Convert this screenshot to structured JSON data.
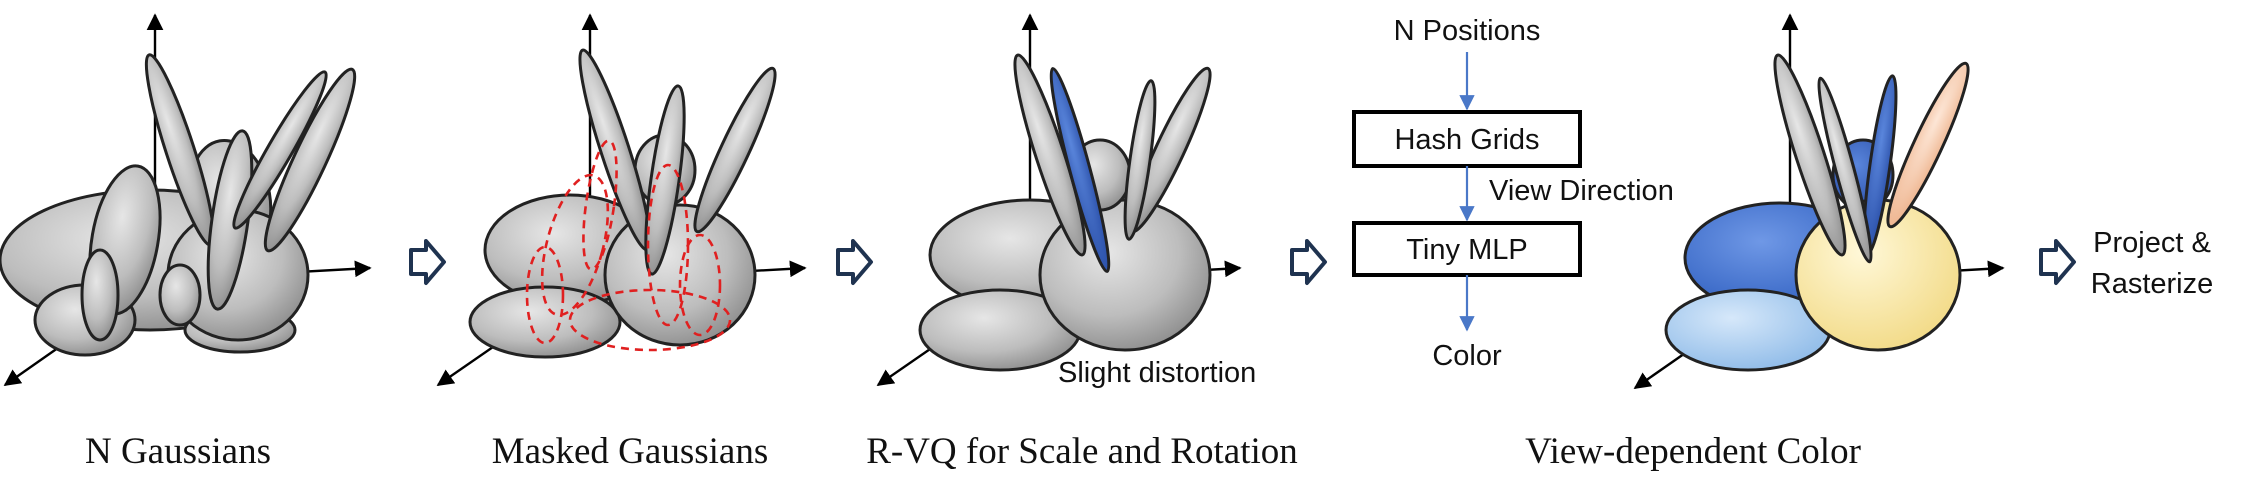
{
  "captions": {
    "n_gaussians": "N Gaussians",
    "masked": "Masked Gaussians",
    "rvq": "R-VQ for Scale and Rotation",
    "view_color": "View-dependent Color"
  },
  "annotations": {
    "slight_distortion": "Slight distortion",
    "project_line1": "Project &",
    "project_line2": "Rasterize"
  },
  "pipeline": {
    "input": "N Positions",
    "box1": "Hash Grids",
    "side_input": "View Direction",
    "box2": "Tiny MLP",
    "output": "Color"
  },
  "colors": {
    "gaussian_gray": "#bdbdbd",
    "mask_red": "#e02020",
    "flow_blue": "#4a78c8",
    "arrow_navy": "#1f3350",
    "color_blue": "#3d6fd0",
    "color_light_blue": "#a9cdf0",
    "color_yellow": "#fbeaa8",
    "color_peach": "#f6c9a8"
  }
}
